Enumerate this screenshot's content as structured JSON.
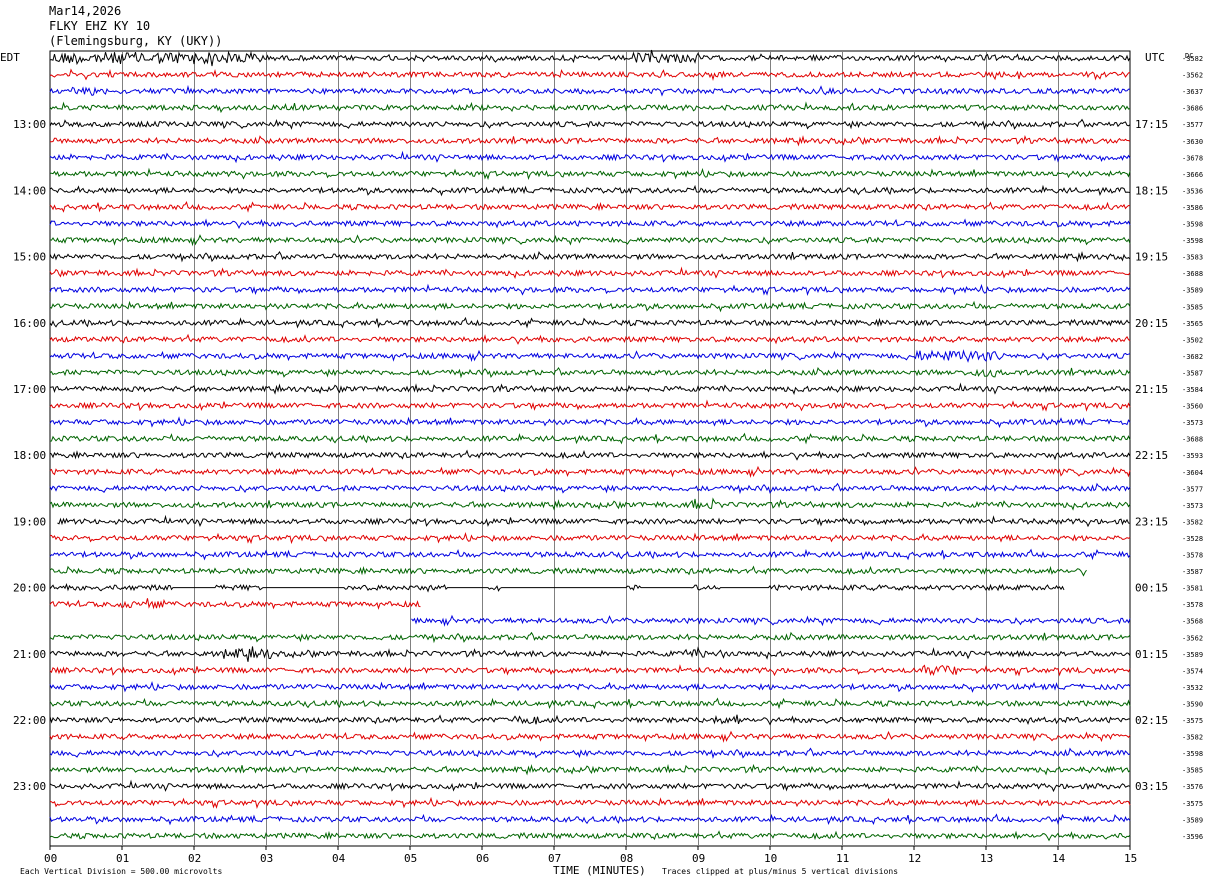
{
  "header": {
    "date": "Mar14,2026",
    "station": "FLKY EHZ KY 10",
    "location": "(Flemingsburg, KY (UKY))"
  },
  "left_timezone": "EDT",
  "right_timezone": "UTC",
  "dc_label": "DC",
  "footer": {
    "scale": "Each Vertical Division =  500.00 microvolts",
    "xlabel": "TIME (MINUTES)",
    "clip_note": "Traces clipped at plus/minus 5 vertical divisions"
  },
  "colors": {
    "trace": [
      "#000000",
      "#e00000",
      "#0000e0",
      "#006400"
    ],
    "grid": "#808080"
  },
  "chart_data": {
    "type": "line",
    "title": "FLKY EHZ KY 10",
    "xlabel": "TIME (MINUTES)",
    "ylabel": "",
    "grid": true,
    "xlim": [
      0,
      15
    ],
    "x_ticks": [
      "00",
      "01",
      "02",
      "03",
      "04",
      "05",
      "06",
      "07",
      "08",
      "09",
      "10",
      "11",
      "12",
      "13",
      "14",
      "15"
    ],
    "left_hour_labels": [
      "13:00",
      "14:00",
      "15:00",
      "16:00",
      "17:00",
      "18:00",
      "19:00",
      "20:00",
      "21:00",
      "22:00",
      "23:00"
    ],
    "right_hour_labels": [
      "17:15",
      "18:15",
      "19:15",
      "20:15",
      "21:15",
      "22:15",
      "23:15",
      "00:15",
      "01:15",
      "02:15",
      "03:15"
    ],
    "row_count": 48,
    "rows_per_hour": 4,
    "color_cycle": [
      "black",
      "red",
      "blue",
      "green"
    ],
    "dc_offsets": [
      "-3582",
      "-3562",
      "-3637",
      "-3686",
      "-3577",
      "-3630",
      "-3678",
      "-3666",
      "-3536",
      "-3586",
      "-3598",
      "-3598",
      "-3583",
      "-3688",
      "-3589",
      "-3585",
      "-3565",
      "-3502",
      "-3682",
      "-3587",
      "-3584",
      "-3560",
      "-3573",
      "-3688",
      "-3593",
      "-3604",
      "-3577",
      "-3573",
      "-3582",
      "-3528",
      "-3578",
      "-3587",
      "-3581",
      "-3578",
      "-3568",
      "-3562",
      "-3589",
      "-3574",
      "-3532",
      "-3590",
      "-3575",
      "-3582",
      "-3598",
      "-3585",
      "-3576",
      "-3575",
      "-3589",
      "-3596"
    ],
    "missing_segments": [
      {
        "row": 28,
        "from_min": 0.0,
        "to_min": 0.1
      },
      {
        "row": 31,
        "from_min": 14.4,
        "to_min": 15.0
      },
      {
        "row": 32,
        "from_min": 14.1,
        "to_min": 15.0
      },
      {
        "row": 33,
        "from_min": 5.15,
        "to_min": 15.0
      },
      {
        "row": 34,
        "from_min": 0.0,
        "to_min": 5.0
      }
    ],
    "flat_segments": [
      {
        "row": 32,
        "from_min": 1.7,
        "to_min": 2.3
      },
      {
        "row": 32,
        "from_min": 2.95,
        "to_min": 3.5
      },
      {
        "row": 32,
        "from_min": 3.5,
        "to_min": 4.1
      },
      {
        "row": 32,
        "from_min": 5.5,
        "to_min": 6.1
      },
      {
        "row": 32,
        "from_min": 6.25,
        "to_min": 8.0
      },
      {
        "row": 32,
        "from_min": 8.2,
        "to_min": 8.9
      },
      {
        "row": 32,
        "from_min": 9.3,
        "to_min": 10.0
      }
    ],
    "bursts": [
      {
        "row": 0,
        "from_min": 0.0,
        "to_min": 3.0,
        "amp": 2.4
      },
      {
        "row": 0,
        "from_min": 8.1,
        "to_min": 9.0,
        "amp": 2.0
      },
      {
        "row": 2,
        "from_min": 0.3,
        "to_min": 0.8,
        "amp": 1.8
      },
      {
        "row": 18,
        "from_min": 12.0,
        "to_min": 13.2,
        "amp": 2.2
      },
      {
        "row": 19,
        "from_min": 12.8,
        "to_min": 13.2,
        "amp": 1.8
      },
      {
        "row": 27,
        "from_min": 8.9,
        "to_min": 9.3,
        "amp": 1.6
      },
      {
        "row": 33,
        "from_min": 1.0,
        "to_min": 1.6,
        "amp": 1.6
      },
      {
        "row": 36,
        "from_min": 2.4,
        "to_min": 3.1,
        "amp": 2.0
      },
      {
        "row": 36,
        "from_min": 8.8,
        "to_min": 9.4,
        "amp": 1.6
      },
      {
        "row": 37,
        "from_min": 12.1,
        "to_min": 12.6,
        "amp": 2.0
      },
      {
        "row": 40,
        "from_min": 6.4,
        "to_min": 6.8,
        "amp": 1.6
      },
      {
        "row": 40,
        "from_min": 9.2,
        "to_min": 9.6,
        "amp": 1.6
      }
    ]
  }
}
